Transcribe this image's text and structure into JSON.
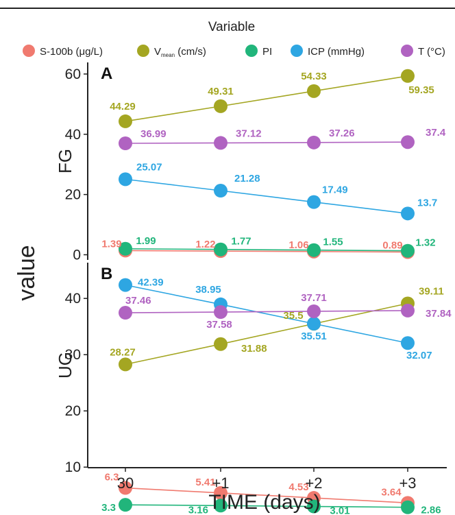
{
  "chart_data": [
    {
      "type": "line",
      "panel_label": "A",
      "ylabel": "FG",
      "ylim": [
        0,
        62
      ],
      "yticks": [
        "0",
        "20",
        "40",
        "60"
      ],
      "categories": [
        "30",
        "+1",
        "+2",
        "+3"
      ],
      "series": [
        {
          "name": "S-100b (µg/L)",
          "values": [
            1.39,
            1.22,
            1.06,
            0.89
          ],
          "labels": [
            "1.39",
            "1.22",
            "1.06",
            "0.89"
          ]
        },
        {
          "name": "V_mean (cm/s)",
          "values": [
            44.29,
            49.31,
            54.33,
            59.35
          ],
          "labels": [
            "44.29",
            "49.31",
            "54.33",
            "59.35"
          ]
        },
        {
          "name": "PI",
          "values": [
            1.99,
            1.77,
            1.55,
            1.32
          ],
          "labels": [
            "1.99",
            "1.77",
            "1.55",
            "1.32"
          ]
        },
        {
          "name": "ICP (mmHg)",
          "values": [
            25.07,
            21.28,
            17.49,
            13.7
          ],
          "labels": [
            "25.07",
            "21.28",
            "17.49",
            "13.7"
          ]
        },
        {
          "name": "T (°C)",
          "values": [
            36.99,
            37.12,
            37.26,
            37.4
          ],
          "labels": [
            "36.99",
            "37.12",
            "37.26",
            "37.4"
          ]
        }
      ]
    },
    {
      "type": "line",
      "panel_label": "B",
      "ylabel": "UG",
      "ylim": [
        1.5,
        44.5
      ],
      "yticks": [
        "10",
        "20",
        "30",
        "40"
      ],
      "categories": [
        "30",
        "+1",
        "+2",
        "+3"
      ],
      "series": [
        {
          "name": "S-100b (µg/L)",
          "values": [
            6.3,
            5.41,
            4.53,
            3.64
          ],
          "labels": [
            "6.3",
            "5.41",
            "4.53",
            "3.64"
          ]
        },
        {
          "name": "V_mean (cm/s)",
          "values": [
            28.27,
            31.88,
            35.5,
            39.11
          ],
          "labels": [
            "28.27",
            "31.88",
            "35.5",
            "39.11"
          ]
        },
        {
          "name": "PI",
          "values": [
            3.3,
            3.16,
            3.01,
            2.86
          ],
          "labels": [
            "3.3",
            "3.16",
            "3.01",
            "2.86"
          ]
        },
        {
          "name": "ICP (mmHg)",
          "values": [
            42.39,
            38.95,
            35.51,
            32.07
          ],
          "labels": [
            "42.39",
            "38.95",
            "35.51",
            "32.07"
          ]
        },
        {
          "name": "T (°C)",
          "values": [
            37.46,
            37.58,
            37.71,
            37.84
          ],
          "labels": [
            "37.46",
            "37.58",
            "37.71",
            "37.84"
          ]
        }
      ]
    }
  ],
  "legend": {
    "title": "Variable",
    "items": [
      {
        "label": "S-100b (μg/L)",
        "color": "#F07A6F"
      },
      {
        "label_main": "V",
        "label_sub": "mean",
        "label_rest": " (cm/s)",
        "color": "#A4A622"
      },
      {
        "label": "PI",
        "color": "#21B57B"
      },
      {
        "label": "ICP (mmHg)",
        "color": "#2EA6E2"
      },
      {
        "label": "T (°C)",
        "color": "#B063C1"
      }
    ]
  },
  "axis": {
    "xlabel": "TIME (days)",
    "ylabel": "value"
  },
  "colors": {
    "s100b": "#F07A6F",
    "vmean": "#A4A622",
    "pi": "#21B57B",
    "icp": "#2EA6E2",
    "t": "#B063C1"
  }
}
